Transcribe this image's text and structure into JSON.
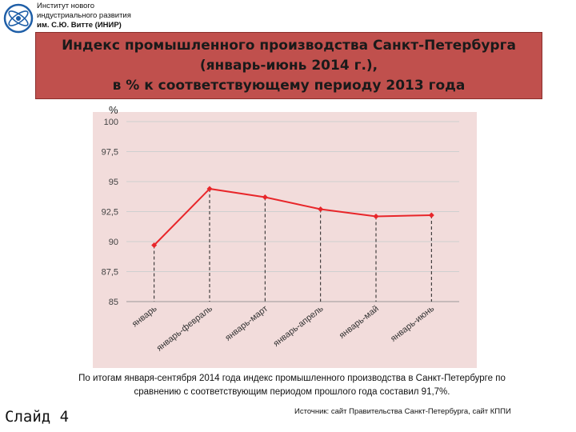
{
  "header": {
    "institute_lines": [
      "Институт нового",
      "индустриального развития",
      "им. С.Ю. Витте (ИНИР)"
    ],
    "logo_icon": "atom-logo-icon"
  },
  "title_lines": [
    "Индекс промышленного производства Санкт-Петербурга",
    "(январь-июнь 2014 г.),",
    "в % к соответствующему периоду 2013 года"
  ],
  "colors": {
    "title_background": "#c0504d",
    "plot_background": "#f2dcdb",
    "series_line": "#e8262a",
    "gridline": "#cfcfcf"
  },
  "chart_data": {
    "type": "line",
    "title": "",
    "ylabel": "%",
    "xlabel": "",
    "categories": [
      "январь",
      "январь-февраль",
      "январь-март",
      "январь-апрель",
      "январь-май",
      "январь-июнь"
    ],
    "series": [
      {
        "values": [
          89.7,
          94.4,
          93.7,
          92.7,
          92.1,
          92.2
        ]
      }
    ],
    "ylim": [
      85,
      100
    ],
    "ytick_labels": [
      "100",
      "97,5",
      "95",
      "92,5",
      "90",
      "87,5",
      "85"
    ],
    "grid": true,
    "drop_lines": true,
    "legend": "none"
  },
  "caption_lines": [
    "По итогам января-сентября 2014 года индекс промышленного производства в Санкт-Петербурге по",
    "сравнению с соответствующим периодом прошлого года составил 91,7%."
  ],
  "slide_label": "Слайд 4",
  "source": "Источник: сайт Правительства Санкт-Петербурга, сайт КППИ"
}
